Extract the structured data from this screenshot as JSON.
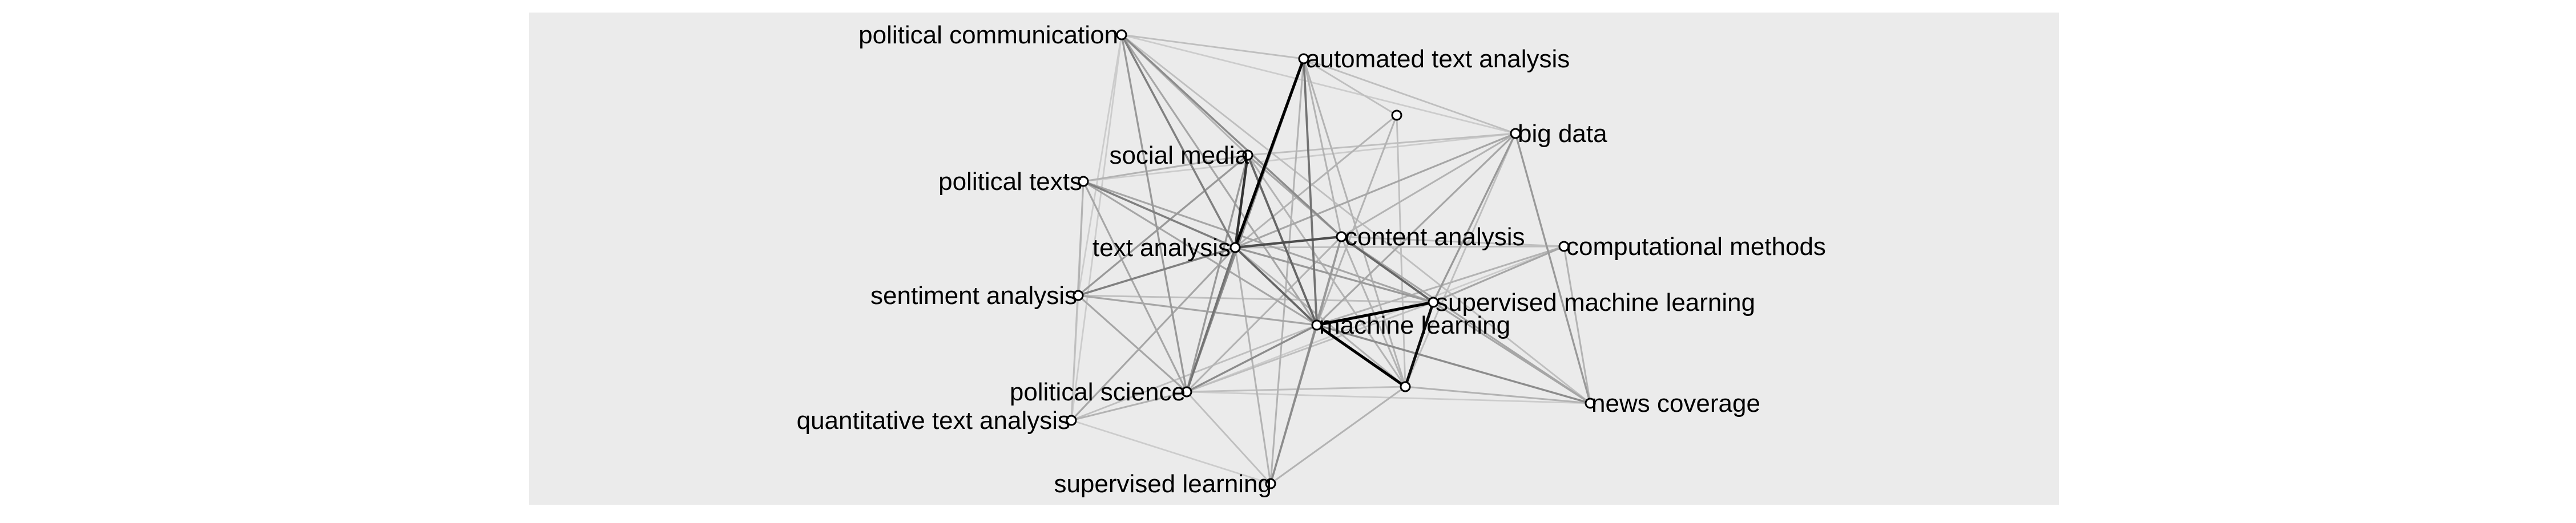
{
  "diagram": {
    "type": "network",
    "colors": {
      "panel_background": "#ebebeb",
      "node_fill": "#ffffff",
      "node_stroke": "#000000",
      "label_color": "#000000",
      "edge_color_strong": "#000000",
      "edge_color_weak": "#cccccc"
    },
    "nodes": [
      {
        "id": "political-communication",
        "label": "political communication"
      },
      {
        "id": "automated-text-analysis",
        "label": "automated text analysis"
      },
      {
        "id": "unlabeled-top",
        "label": ""
      },
      {
        "id": "big-data",
        "label": "big data"
      },
      {
        "id": "social-media",
        "label": "social media"
      },
      {
        "id": "political-texts",
        "label": "political texts"
      },
      {
        "id": "content-analysis",
        "label": "content analysis"
      },
      {
        "id": "text-analysis",
        "label": "text analysis"
      },
      {
        "id": "computational-methods",
        "label": "computational methods"
      },
      {
        "id": "sentiment-analysis",
        "label": "sentiment analysis"
      },
      {
        "id": "supervised-machine-learning",
        "label": "supervised machine learning"
      },
      {
        "id": "machine-learning",
        "label": "machine learning"
      },
      {
        "id": "unlabeled-bottom",
        "label": ""
      },
      {
        "id": "political-science",
        "label": "political science"
      },
      {
        "id": "news-coverage",
        "label": "news coverage"
      },
      {
        "id": "quantitative-text-analysis",
        "label": "quantitative text analysis"
      },
      {
        "id": "supervised-learning",
        "label": "supervised learning"
      }
    ],
    "edges": [
      {
        "source": "automated-text-analysis",
        "target": "text-analysis",
        "weight": 1.0
      },
      {
        "source": "machine-learning",
        "target": "supervised-machine-learning",
        "weight": 1.0
      },
      {
        "source": "machine-learning",
        "target": "unlabeled-bottom",
        "weight": 1.0
      },
      {
        "source": "supervised-machine-learning",
        "target": "unlabeled-bottom",
        "weight": 0.95
      },
      {
        "source": "social-media",
        "target": "text-analysis",
        "weight": 0.8
      },
      {
        "source": "text-analysis",
        "target": "content-analysis",
        "weight": 0.7
      },
      {
        "source": "text-analysis",
        "target": "machine-learning",
        "weight": 0.6
      },
      {
        "source": "content-analysis",
        "target": "supervised-machine-learning",
        "weight": 0.6
      },
      {
        "source": "social-media",
        "target": "machine-learning",
        "weight": 0.6
      },
      {
        "source": "automated-text-analysis",
        "target": "machine-learning",
        "weight": 0.55
      },
      {
        "source": "political-texts",
        "target": "text-analysis",
        "weight": 0.5
      },
      {
        "source": "text-analysis",
        "target": "political-science",
        "weight": 0.55
      },
      {
        "source": "political-communication",
        "target": "text-analysis",
        "weight": 0.5
      },
      {
        "source": "political-communication",
        "target": "content-analysis",
        "weight": 0.45
      },
      {
        "source": "sentiment-analysis",
        "target": "text-analysis",
        "weight": 0.5
      },
      {
        "source": "sentiment-analysis",
        "target": "social-media",
        "weight": 0.4
      },
      {
        "source": "political-science",
        "target": "machine-learning",
        "weight": 0.45
      },
      {
        "source": "political-science",
        "target": "automated-text-analysis",
        "weight": 0.45
      },
      {
        "source": "political-science",
        "target": "social-media",
        "weight": 0.4
      },
      {
        "source": "supervised-learning",
        "target": "machine-learning",
        "weight": 0.45
      },
      {
        "source": "supervised-learning",
        "target": "content-analysis",
        "weight": 0.4
      },
      {
        "source": "supervised-learning",
        "target": "text-analysis",
        "weight": 0.3
      },
      {
        "source": "news-coverage",
        "target": "machine-learning",
        "weight": 0.45
      },
      {
        "source": "news-coverage",
        "target": "big-data",
        "weight": 0.4
      },
      {
        "source": "news-coverage",
        "target": "content-analysis",
        "weight": 0.35
      },
      {
        "source": "big-data",
        "target": "supervised-machine-learning",
        "weight": 0.4
      },
      {
        "source": "big-data",
        "target": "machine-learning",
        "weight": 0.35
      },
      {
        "source": "big-data",
        "target": "text-analysis",
        "weight": 0.35
      },
      {
        "source": "big-data",
        "target": "content-analysis",
        "weight": 0.3
      },
      {
        "source": "computational-methods",
        "target": "supervised-machine-learning",
        "weight": 0.35
      },
      {
        "source": "computational-methods",
        "target": "machine-learning",
        "weight": 0.3
      },
      {
        "source": "computational-methods",
        "target": "text-analysis",
        "weight": 0.25
      },
      {
        "source": "computational-methods",
        "target": "news-coverage",
        "weight": 0.3
      },
      {
        "source": "political-texts",
        "target": "supervised-machine-learning",
        "weight": 0.35
      },
      {
        "source": "political-texts",
        "target": "political-science",
        "weight": 0.35
      },
      {
        "source": "political-texts",
        "target": "machine-learning",
        "weight": 0.35
      },
      {
        "source": "political-texts",
        "target": "social-media",
        "weight": 0.3
      },
      {
        "source": "political-texts",
        "target": "sentiment-analysis",
        "weight": 0.3
      },
      {
        "source": "political-communication",
        "target": "political-science",
        "weight": 0.4
      },
      {
        "source": "political-communication",
        "target": "machine-learning",
        "weight": 0.35
      },
      {
        "source": "political-communication",
        "target": "automated-text-analysis",
        "weight": 0.25
      },
      {
        "source": "political-communication",
        "target": "social-media",
        "weight": 0.3
      },
      {
        "source": "automated-text-analysis",
        "target": "unlabeled-top",
        "weight": 0.25
      },
      {
        "source": "automated-text-analysis",
        "target": "big-data",
        "weight": 0.25
      },
      {
        "source": "automated-text-analysis",
        "target": "content-analysis",
        "weight": 0.3
      },
      {
        "source": "automated-text-analysis",
        "target": "unlabeled-bottom",
        "weight": 0.3
      },
      {
        "source": "automated-text-analysis",
        "target": "supervised-learning",
        "weight": 0.3
      },
      {
        "source": "unlabeled-top",
        "target": "text-analysis",
        "weight": 0.3
      },
      {
        "source": "unlabeled-top",
        "target": "machine-learning",
        "weight": 0.3
      },
      {
        "source": "unlabeled-top",
        "target": "unlabeled-bottom",
        "weight": 0.25
      },
      {
        "source": "social-media",
        "target": "content-analysis",
        "weight": 0.35
      },
      {
        "source": "social-media",
        "target": "unlabeled-bottom",
        "weight": 0.3
      },
      {
        "source": "social-media",
        "target": "big-data",
        "weight": 0.25
      },
      {
        "source": "text-analysis",
        "target": "supervised-machine-learning",
        "weight": 0.4
      },
      {
        "source": "text-analysis",
        "target": "unlabeled-bottom",
        "weight": 0.3
      },
      {
        "source": "text-analysis",
        "target": "quantitative-text-analysis",
        "weight": 0.35
      },
      {
        "source": "content-analysis",
        "target": "machine-learning",
        "weight": 0.4
      },
      {
        "source": "content-analysis",
        "target": "political-science",
        "weight": 0.3
      },
      {
        "source": "content-analysis",
        "target": "unlabeled-bottom",
        "weight": 0.3
      },
      {
        "source": "sentiment-analysis",
        "target": "machine-learning",
        "weight": 0.35
      },
      {
        "source": "sentiment-analysis",
        "target": "political-science",
        "weight": 0.35
      },
      {
        "source": "sentiment-analysis",
        "target": "supervised-machine-learning",
        "weight": 0.25
      },
      {
        "source": "quantitative-text-analysis",
        "target": "political-science",
        "weight": 0.3
      },
      {
        "source": "quantitative-text-analysis",
        "target": "political-texts",
        "weight": 0.25
      },
      {
        "source": "quantitative-text-analysis",
        "target": "machine-learning",
        "weight": 0.25
      },
      {
        "source": "quantitative-text-analysis",
        "target": "sentiment-analysis",
        "weight": 0.2
      },
      {
        "source": "supervised-learning",
        "target": "political-science",
        "weight": 0.25
      },
      {
        "source": "supervised-learning",
        "target": "unlabeled-bottom",
        "weight": 0.3
      },
      {
        "source": "supervised-learning",
        "target": "quantitative-text-analysis",
        "weight": 0.2
      },
      {
        "source": "unlabeled-bottom",
        "target": "news-coverage",
        "weight": 0.3
      },
      {
        "source": "unlabeled-bottom",
        "target": "political-science",
        "weight": 0.25
      },
      {
        "source": "political-communication",
        "target": "big-data",
        "weight": 0.2
      },
      {
        "source": "political-communication",
        "target": "news-coverage",
        "weight": 0.25
      },
      {
        "source": "political-communication",
        "target": "sentiment-analysis",
        "weight": 0.2
      },
      {
        "source": "political-communication",
        "target": "quantitative-text-analysis",
        "weight": 0.2
      },
      {
        "source": "big-data",
        "target": "political-texts",
        "weight": 0.2
      },
      {
        "source": "big-data",
        "target": "unlabeled-bottom",
        "weight": 0.25
      },
      {
        "source": "computational-methods",
        "target": "content-analysis",
        "weight": 0.25
      },
      {
        "source": "computational-methods",
        "target": "political-science",
        "weight": 0.2
      },
      {
        "source": "supervised-machine-learning",
        "target": "news-coverage",
        "weight": 0.35
      },
      {
        "source": "supervised-machine-learning",
        "target": "political-science",
        "weight": 0.25
      },
      {
        "source": "political-science",
        "target": "news-coverage",
        "weight": 0.2
      }
    ]
  }
}
